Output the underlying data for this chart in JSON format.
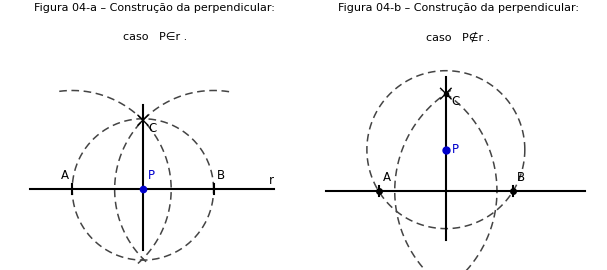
{
  "fig_width": 6.07,
  "fig_height": 2.7,
  "dpi": 100,
  "title_a_line1": "Figura 04-a – Construção da perpendicular:",
  "title_a_line2": "caso   P∈r .",
  "title_b_line1": "Figura 04-b – Construção da perpendicular:",
  "title_b_line2": "caso   P∉r .",
  "bg_color": "#ffffff",
  "line_color": "#000000",
  "blue_color": "#0000cc",
  "dashed_color": "#444444",
  "fontsize_title": 8.0,
  "fontsize_label": 8.5
}
